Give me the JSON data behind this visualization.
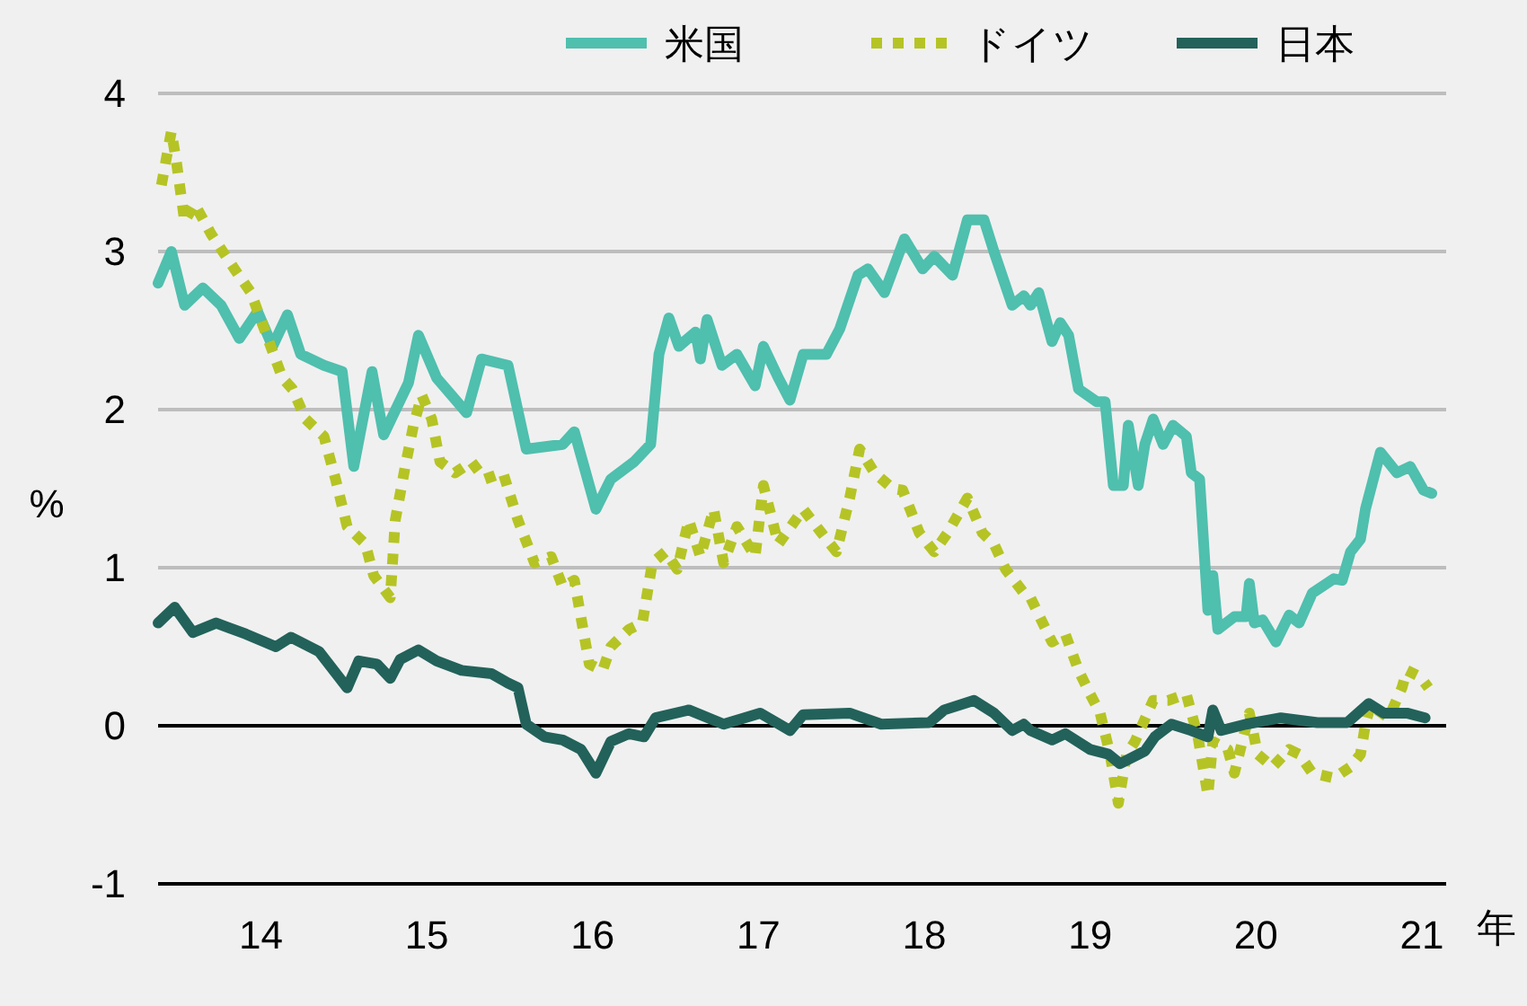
{
  "chart_data": {
    "type": "line",
    "xlabel": "年",
    "ylabel": "%",
    "xlim": [
      13.38,
      21.06
    ],
    "ylim": [
      -1,
      4
    ],
    "xticks": [
      14,
      15,
      16,
      17,
      18,
      19,
      20,
      21
    ],
    "yticks": [
      -1,
      0,
      1,
      2,
      3,
      4
    ],
    "grid": "y",
    "legend": "top right",
    "ref_lines": [
      {
        "axis": "y",
        "value": 0,
        "color": "#000000"
      }
    ],
    "series": [
      {
        "name": "米国",
        "color": "#4fbfae",
        "line_style": "solid",
        "x": [
          13.38,
          13.46,
          13.54,
          13.65,
          13.76,
          13.87,
          13.98,
          14.07,
          14.16,
          14.24,
          14.38,
          14.49,
          14.56,
          14.67,
          14.74,
          14.89,
          14.95,
          15.06,
          15.24,
          15.33,
          15.49,
          15.6,
          15.82,
          15.89,
          16.02,
          16.11,
          16.25,
          16.35,
          16.4,
          16.46,
          16.52,
          16.62,
          16.65,
          16.69,
          16.78,
          16.87,
          16.98,
          17.03,
          17.12,
          17.19,
          17.27,
          17.41,
          17.49,
          17.6,
          17.66,
          17.76,
          17.88,
          17.99,
          18.06,
          18.17,
          18.26,
          18.36,
          18.42,
          18.53,
          18.6,
          18.64,
          18.69,
          18.77,
          18.82,
          18.87,
          18.93,
          19.04,
          19.09,
          19.14,
          19.2,
          19.23,
          19.29,
          19.33,
          19.38,
          19.44,
          19.5,
          19.58,
          19.61,
          19.66,
          19.71,
          19.74,
          19.77,
          19.87,
          19.94,
          19.96,
          19.99,
          20.04,
          20.12,
          20.2,
          20.26,
          20.34,
          20.47,
          20.52,
          20.57,
          20.63,
          20.66,
          20.75,
          20.85,
          20.93,
          21.01,
          21.06
        ],
        "values": [
          2.8,
          3.0,
          2.66,
          2.77,
          2.66,
          2.45,
          2.62,
          2.4,
          2.6,
          2.35,
          2.28,
          2.24,
          1.64,
          2.24,
          1.84,
          2.17,
          2.47,
          2.2,
          1.98,
          2.32,
          2.28,
          1.75,
          1.78,
          1.86,
          1.37,
          1.56,
          1.67,
          1.78,
          2.35,
          2.58,
          2.4,
          2.49,
          2.32,
          2.57,
          2.28,
          2.35,
          2.15,
          2.4,
          2.2,
          2.06,
          2.35,
          2.35,
          2.51,
          2.85,
          2.89,
          2.74,
          3.08,
          2.89,
          2.97,
          2.85,
          3.2,
          3.2,
          3.0,
          2.66,
          2.72,
          2.66,
          2.74,
          2.43,
          2.55,
          2.47,
          2.13,
          2.05,
          2.05,
          1.52,
          1.52,
          1.9,
          1.52,
          1.78,
          1.94,
          1.78,
          1.9,
          1.83,
          1.6,
          1.56,
          0.73,
          0.95,
          0.61,
          0.69,
          0.69,
          0.9,
          0.65,
          0.67,
          0.53,
          0.7,
          0.65,
          0.84,
          0.93,
          0.92,
          1.1,
          1.18,
          1.37,
          1.73,
          1.6,
          1.64,
          1.49,
          1.47
        ]
      },
      {
        "name": "ドイツ",
        "color": "#b5c424",
        "line_style": "dotted",
        "x": [
          13.4,
          13.46,
          13.49,
          13.54,
          13.6,
          13.7,
          13.84,
          13.94,
          14.02,
          14.13,
          14.19,
          14.27,
          14.38,
          14.45,
          14.52,
          14.63,
          14.68,
          14.78,
          14.81,
          14.87,
          14.92,
          14.97,
          15.03,
          15.08,
          15.17,
          15.27,
          15.35,
          15.46,
          15.55,
          15.65,
          15.75,
          15.82,
          15.89,
          15.98,
          16.06,
          16.11,
          16.22,
          16.3,
          16.36,
          16.44,
          16.51,
          16.58,
          16.65,
          16.73,
          16.79,
          16.87,
          16.98,
          17.03,
          17.12,
          17.27,
          17.38,
          17.47,
          17.55,
          17.61,
          17.7,
          17.81,
          17.87,
          17.97,
          18.06,
          18.14,
          18.26,
          18.35,
          18.42,
          18.49,
          18.6,
          18.64,
          18.77,
          18.85,
          18.93,
          19.0,
          19.06,
          19.12,
          19.17,
          19.22,
          19.27,
          19.38,
          19.47,
          19.58,
          19.65,
          19.71,
          19.74,
          19.83,
          19.87,
          19.96,
          20.01,
          20.1,
          20.2,
          20.26,
          20.34,
          20.47,
          20.57,
          20.63,
          20.66,
          20.69,
          20.8,
          20.88,
          20.91,
          20.99,
          21.04
        ],
        "values": [
          3.42,
          3.76,
          3.57,
          3.19,
          3.3,
          3.11,
          2.89,
          2.74,
          2.51,
          2.2,
          2.13,
          1.94,
          1.83,
          1.56,
          1.26,
          1.15,
          0.95,
          0.81,
          1.3,
          1.64,
          1.9,
          2.09,
          1.94,
          1.67,
          1.6,
          1.67,
          1.56,
          1.6,
          1.3,
          1.03,
          1.07,
          0.88,
          0.92,
          0.39,
          0.35,
          0.5,
          0.61,
          0.65,
          1.03,
          1.1,
          0.99,
          1.3,
          1.07,
          1.37,
          1.03,
          1.26,
          1.07,
          1.52,
          1.15,
          1.37,
          1.22,
          1.1,
          1.44,
          1.75,
          1.6,
          1.5,
          1.49,
          1.22,
          1.1,
          1.22,
          1.44,
          1.22,
          1.15,
          0.99,
          0.84,
          0.81,
          0.53,
          0.58,
          0.35,
          0.2,
          0.08,
          -0.18,
          -0.49,
          -0.18,
          -0.1,
          0.16,
          0.16,
          0.2,
          -0.07,
          -0.44,
          -0.1,
          -0.15,
          -0.3,
          0.08,
          -0.18,
          -0.26,
          -0.15,
          -0.18,
          -0.3,
          -0.33,
          -0.26,
          -0.18,
          0.01,
          0.13,
          0.05,
          0.24,
          0.35,
          0.31,
          0.24
        ]
      },
      {
        "name": "日本",
        "color": "#22625a",
        "line_style": "solid",
        "x": [
          13.38,
          13.48,
          13.59,
          13.73,
          13.91,
          14.09,
          14.18,
          14.35,
          14.52,
          14.59,
          14.7,
          14.78,
          14.84,
          14.95,
          15.06,
          15.21,
          15.39,
          15.49,
          15.55,
          15.6,
          15.71,
          15.82,
          15.93,
          16.02,
          16.11,
          16.22,
          16.31,
          16.38,
          16.58,
          16.79,
          17.01,
          17.19,
          17.27,
          17.55,
          17.74,
          18.03,
          18.12,
          18.3,
          18.42,
          18.53,
          18.6,
          18.64,
          18.77,
          18.85,
          19.0,
          19.11,
          19.18,
          19.33,
          19.39,
          19.49,
          19.61,
          19.71,
          19.74,
          19.79,
          19.94,
          20.15,
          20.37,
          20.55,
          20.68,
          20.77,
          20.91,
          21.02
        ],
        "values": [
          0.65,
          0.75,
          0.59,
          0.65,
          0.58,
          0.5,
          0.56,
          0.47,
          0.24,
          0.41,
          0.39,
          0.3,
          0.42,
          0.48,
          0.41,
          0.35,
          0.33,
          0.27,
          0.24,
          0.01,
          -0.07,
          -0.09,
          -0.15,
          -0.3,
          -0.1,
          -0.05,
          -0.07,
          0.05,
          0.1,
          0.01,
          0.08,
          -0.03,
          0.07,
          0.08,
          0.01,
          0.02,
          0.1,
          0.16,
          0.08,
          -0.03,
          0.01,
          -0.03,
          -0.09,
          -0.05,
          -0.15,
          -0.18,
          -0.24,
          -0.16,
          -0.07,
          0.01,
          -0.03,
          -0.07,
          0.1,
          -0.03,
          0.01,
          0.05,
          0.02,
          0.02,
          0.14,
          0.08,
          0.08,
          0.05
        ]
      }
    ]
  }
}
